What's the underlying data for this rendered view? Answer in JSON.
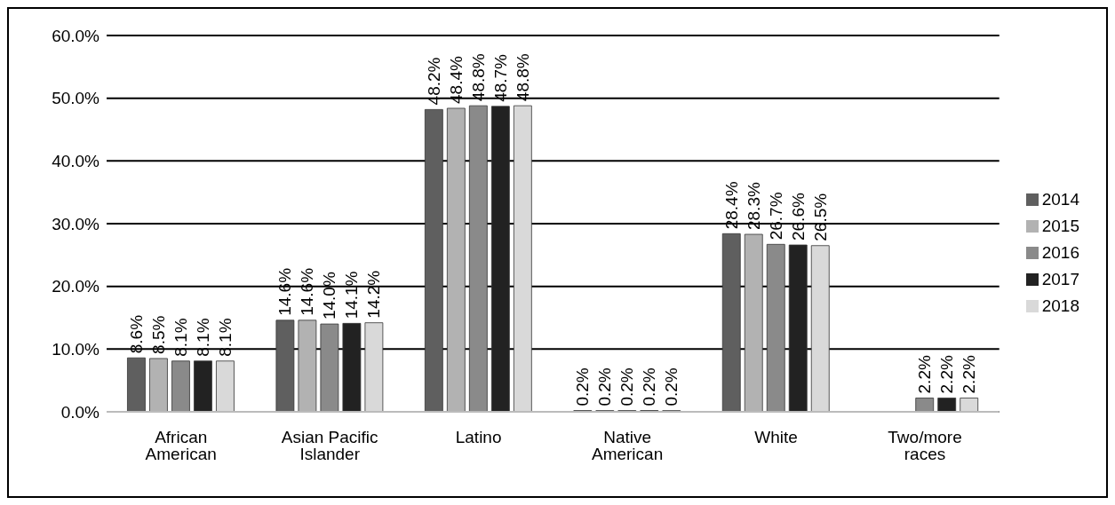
{
  "chart_data": {
    "type": "bar",
    "categories": [
      "African American",
      "Asian Pacific Islander",
      "Latino",
      "Native American",
      "White",
      "Two/more races"
    ],
    "series": [
      {
        "name": "2014",
        "color": "#5f5f5f",
        "values": [
          8.6,
          14.6,
          48.2,
          0.2,
          28.4,
          null
        ],
        "value_labels": [
          "8.6%",
          "14.6%",
          "48.2%",
          "0.2%",
          "28.4%",
          null
        ]
      },
      {
        "name": "2015",
        "color": "#b2b2b2",
        "values": [
          8.5,
          14.6,
          48.4,
          0.2,
          28.3,
          null
        ],
        "value_labels": [
          "8.5%",
          "14.6%",
          "48.4%",
          "0.2%",
          "28.3%",
          null
        ]
      },
      {
        "name": "2016",
        "color": "#8a8a8a",
        "values": [
          8.1,
          14.0,
          48.8,
          0.2,
          26.7,
          2.2
        ],
        "value_labels": [
          "8.1%",
          "14.0%",
          "48.8%",
          "0.2%",
          "26.7%",
          "2.2%"
        ]
      },
      {
        "name": "2017",
        "color": "#222222",
        "values": [
          8.1,
          14.1,
          48.7,
          0.2,
          26.6,
          2.2
        ],
        "value_labels": [
          "8.1%",
          "14.1%",
          "48.7%",
          "0.2%",
          "26.6%",
          "2.2%"
        ]
      },
      {
        "name": "2018",
        "color": "#d9d9d9",
        "values": [
          8.1,
          14.2,
          48.8,
          0.2,
          26.5,
          2.2
        ],
        "value_labels": [
          "8.1%",
          "14.2%",
          "48.8%",
          "0.2%",
          "26.5%",
          "2.2%"
        ]
      }
    ],
    "ylim": [
      0,
      60
    ],
    "yticks": [
      {
        "value": 0,
        "label": "0.0%"
      },
      {
        "value": 10,
        "label": "10.0%"
      },
      {
        "value": 20,
        "label": "20.0%"
      },
      {
        "value": 30,
        "label": "30.0%"
      },
      {
        "value": 40,
        "label": "40.0%"
      },
      {
        "value": 50,
        "label": "50.0%"
      },
      {
        "value": 60,
        "label": "60.0%"
      }
    ],
    "grid": "y",
    "legend": "right"
  }
}
